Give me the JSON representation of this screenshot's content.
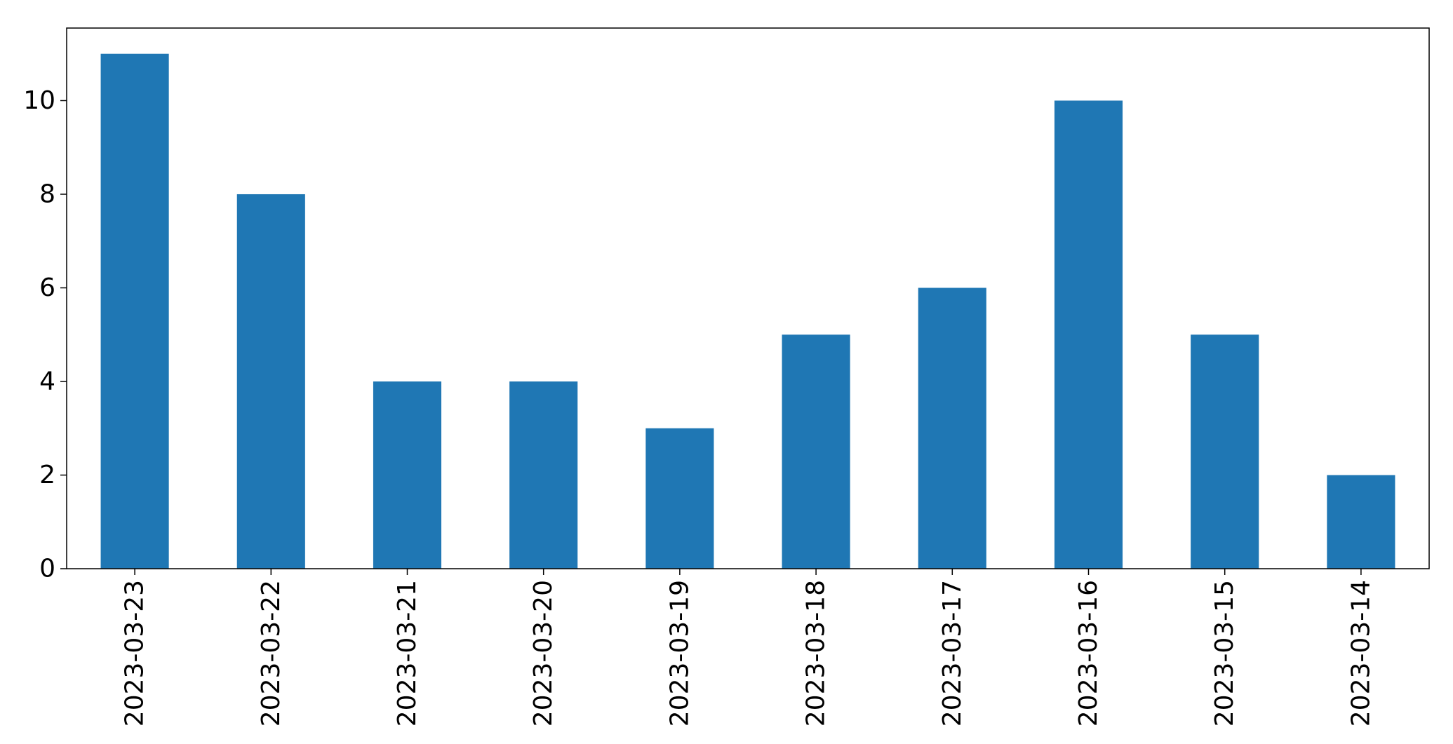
{
  "chart_data": {
    "type": "bar",
    "title": "",
    "xlabel": "",
    "ylabel": "",
    "categories": [
      "2023-03-23",
      "2023-03-22",
      "2023-03-21",
      "2023-03-20",
      "2023-03-19",
      "2023-03-18",
      "2023-03-17",
      "2023-03-16",
      "2023-03-15",
      "2023-03-14"
    ],
    "values": [
      11,
      8,
      4,
      4,
      3,
      5,
      6,
      10,
      5,
      2
    ],
    "ylim": [
      0,
      11.55
    ],
    "yticks": [
      0,
      2,
      4,
      6,
      8,
      10
    ],
    "grid": false,
    "legend": "none",
    "colors": {
      "bar": "#1f77b4",
      "axis": "#000000",
      "background": "#ffffff"
    }
  }
}
